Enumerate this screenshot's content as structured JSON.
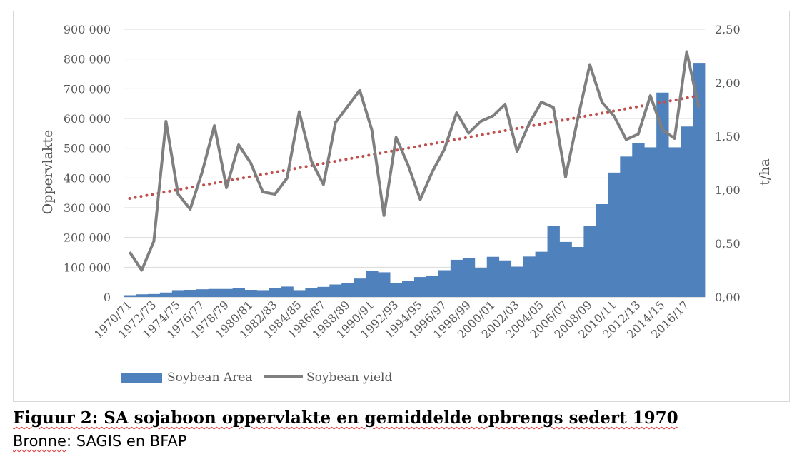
{
  "chart_data": {
    "type": "bar+line",
    "categories": [
      "1970/71",
      "1971/72",
      "1972/73",
      "1973/74",
      "1974/75",
      "1975/76",
      "1976/77",
      "1977/78",
      "1978/79",
      "1979/80",
      "1980/81",
      "1981/82",
      "1982/83",
      "1983/84",
      "1984/85",
      "1985/86",
      "1986/87",
      "1987/88",
      "1988/89",
      "1989/90",
      "1990/91",
      "1991/92",
      "1992/93",
      "1993/94",
      "1994/95",
      "1995/96",
      "1996/97",
      "1997/98",
      "1998/99",
      "1999/00",
      "2000/01",
      "2001/02",
      "2002/03",
      "2003/04",
      "2004/05",
      "2005/06",
      "2006/07",
      "2007/08",
      "2008/09",
      "2009/10",
      "2010/11",
      "2011/12",
      "2012/13",
      "2013/14",
      "2014/15",
      "2015/16",
      "2016/17",
      "2017/18"
    ],
    "tick_labels": [
      "1970/71",
      "1972/73",
      "1974/75",
      "1976/77",
      "1978/79",
      "1980/81",
      "1982/83",
      "1984/85",
      "1986/87",
      "1988/89",
      "1990/91",
      "1992/93",
      "1994/95",
      "1996/97",
      "1998/99",
      "2000/01",
      "2002/03",
      "2004/05",
      "2006/07",
      "2008/09",
      "2010/11",
      "2012/13",
      "2014/15",
      "2016/17"
    ],
    "series": [
      {
        "name": "Soybean Area",
        "type": "bar",
        "axis": "left",
        "color": "#4f81bd",
        "values": [
          6000,
          9000,
          10000,
          15000,
          23000,
          24000,
          26000,
          27000,
          27000,
          29000,
          24000,
          23000,
          30000,
          35000,
          23000,
          30000,
          34000,
          42000,
          46000,
          62000,
          88000,
          83000,
          48000,
          55000,
          67000,
          70000,
          90000,
          125000,
          132000,
          96000,
          135000,
          123000,
          102000,
          136000,
          152000,
          240000,
          185000,
          168000,
          240000,
          312000,
          418000,
          472000,
          517000,
          503000,
          687000,
          503000,
          573000,
          787000
        ]
      },
      {
        "name": "Soybean yield",
        "type": "line",
        "axis": "right",
        "color": "#7f7f7f",
        "values": [
          0.42,
          0.25,
          0.52,
          1.64,
          0.96,
          0.82,
          1.17,
          1.6,
          1.02,
          1.42,
          1.25,
          0.98,
          0.96,
          1.11,
          1.73,
          1.27,
          1.05,
          1.63,
          1.78,
          1.93,
          1.56,
          0.76,
          1.49,
          1.23,
          0.91,
          1.17,
          1.38,
          1.72,
          1.53,
          1.64,
          1.69,
          1.8,
          1.36,
          1.62,
          1.82,
          1.77,
          1.12,
          1.66,
          2.17,
          1.82,
          1.69,
          1.47,
          1.52,
          1.88,
          1.56,
          1.48,
          2.29,
          1.77
        ]
      }
    ],
    "trendline": {
      "series": "Soybean yield",
      "color": "#c0504d",
      "style": "dotted",
      "start": 0.92,
      "end": 1.88
    },
    "y_left": {
      "label": "Oppervlakte",
      "min": 0,
      "max": 900000,
      "step": 100000,
      "tick_labels": [
        "0",
        "100 000",
        "200 000",
        "300 000",
        "400 000",
        "500 000",
        "600 000",
        "700 000",
        "800 000",
        "900 000"
      ]
    },
    "y_right": {
      "label": "t/ha",
      "min": 0,
      "max": 2.5,
      "step": 0.5,
      "tick_labels": [
        "0,00",
        "0,50",
        "1,00",
        "1,50",
        "2,00",
        "2,50"
      ]
    },
    "grid": true,
    "legend_position": "bottom-left"
  },
  "caption": {
    "title": "Figuur 2: SA sojaboon oppervlakte en gemiddelde opbrengs sedert 1970",
    "source_prefix": "Bronne",
    "source_rest": ": SAGIS en BFAP"
  }
}
